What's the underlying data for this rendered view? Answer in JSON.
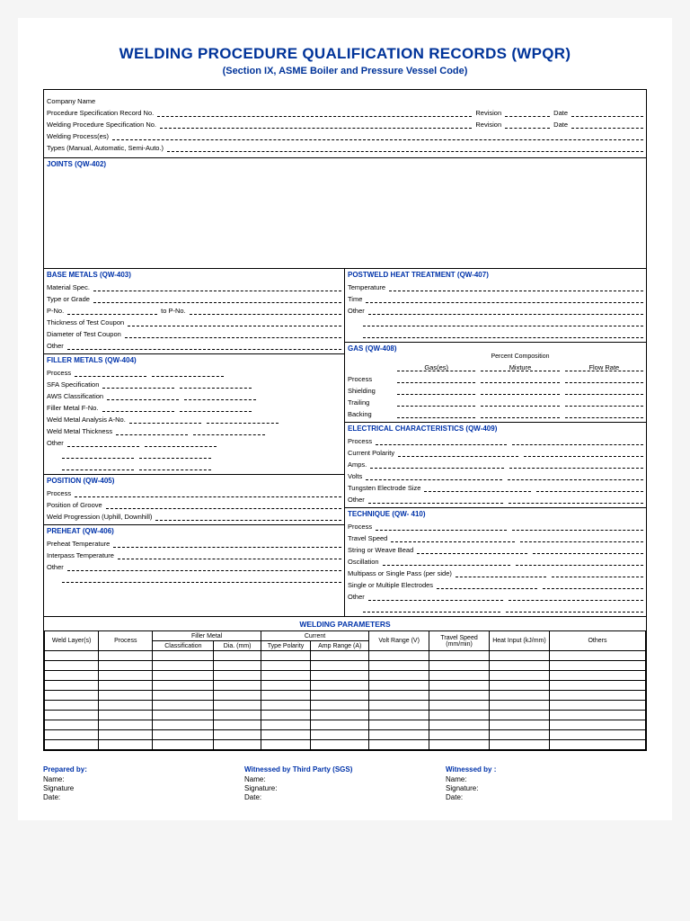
{
  "title": "WELDING PROCEDURE QUALIFICATION RECORDS (WPQR)",
  "subtitle": "(Section IX, ASME Boiler and Pressure Vessel Code)",
  "header": {
    "company": "Company Name",
    "psr": "Procedure Specification Record No.",
    "wps": "Welding Procedure Specification No.",
    "process": "Welding Process(es)",
    "types": "Types (Manual, Automatic, Semi-Auto.)",
    "revision": "Revision",
    "date": "Date"
  },
  "sections": {
    "joints": "JOINTS (QW-402)",
    "base": {
      "title": "BASE METALS (QW-403)",
      "f1": "Material Spec.",
      "f2": "Type or Grade",
      "f3": "P-No.",
      "f3b": "to P-No.",
      "f4": "Thickness of Test Coupon",
      "f5": "Diameter of Test Coupon",
      "f6": "Other"
    },
    "filler": {
      "title": "FILLER METALS (QW-404)",
      "f1": "Process",
      "f2": "SFA Specification",
      "f3": "AWS Classification",
      "f4": "Filler Metal F-No.",
      "f5": "Weld Metal Analysis A-No.",
      "f6": "Weld Metal Thickness",
      "f7": "Other"
    },
    "position": {
      "title": "POSITION (QW-405)",
      "f1": "Process",
      "f2": "Position of Groove",
      "f3": "Weld Progression (Uphill, Downhill)"
    },
    "preheat": {
      "title": "PREHEAT (QW-406)",
      "f1": "Preheat Temperature",
      "f2": "Interpass Temperature",
      "f3": "Other"
    },
    "pwht": {
      "title": "POSTWELD HEAT TREATMENT (QW-407)",
      "f1": "Temperature",
      "f2": "Time",
      "f3": "Other"
    },
    "gas": {
      "title": "GAS (QW-408)",
      "pc": "Percent Composition",
      "h1": "Gas(es)",
      "h2": "Mixture",
      "h3": "Flow Rate",
      "f1": "Process",
      "f2": "Shielding",
      "f3": "Trailing",
      "f4": "Backing"
    },
    "elec": {
      "title": "ELECTRICAL CHARACTERISTICS (QW-409)",
      "f1": "Process",
      "f2": "Current Polarity",
      "f3": "Amps.",
      "f4": "Volts",
      "f5": "Tungsten Electrode Size",
      "f6": "Other"
    },
    "tech": {
      "title": "TECHNIQUE (QW- 410)",
      "f1": "Process",
      "f2": "Travel Speed",
      "f3": "String or Weave Bead",
      "f4": "Oscillation",
      "f5": "Multipass or Single Pass (per side)",
      "f6": "Single or Multiple Electrodes",
      "f7": "Other"
    }
  },
  "wp": {
    "title": "WELDING PARAMETERS",
    "cols": {
      "c1": "Weld Layer(s)",
      "c2": "Process",
      "c3": "Filler Metal",
      "c3a": "Classification",
      "c3b": "Dia. (mm)",
      "c4": "Current",
      "c4a": "Type Polarity",
      "c4b": "Amp Range (A)",
      "c5": "Volt Range (V)",
      "c6": "Travel Speed (mm/min)",
      "c7": "Heat Input (kJ/mm)",
      "c8": "Others"
    },
    "blank_rows": 10
  },
  "sig": {
    "s1": "Prepared by:",
    "s2": "Witnessed by Third Party (SGS)",
    "s3": "Witnessed by :",
    "name": "Name:",
    "signature": "Signature",
    "signature2": "Signature:",
    "date": "Date:"
  },
  "colors": {
    "heading": "#003399",
    "section": "#0033aa",
    "border": "#000000",
    "bg": "#ffffff"
  }
}
